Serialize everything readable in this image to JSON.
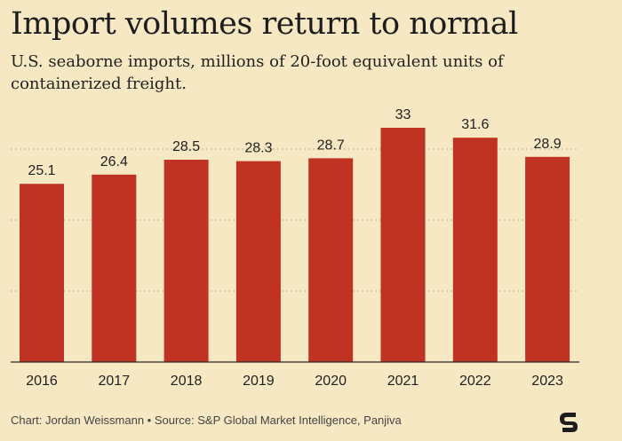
{
  "title": "Import volumes return to normal",
  "subtitle": "U.S. seaborne imports, millions of 20-foot equivalent units of containerized freight.",
  "footer": "Chart: Jordan Weissmann • Source: S&P Global Market Intelligence, Panjiva",
  "colors": {
    "bar": "#c03222",
    "background": "#f6e8c3",
    "grid": "#b8b09e"
  },
  "icons": {
    "logo": "semafor-s-logo"
  },
  "chart_data": {
    "type": "bar",
    "categories": [
      "2016",
      "2017",
      "2018",
      "2019",
      "2020",
      "2021",
      "2022",
      "2023"
    ],
    "values": [
      25.1,
      26.4,
      28.5,
      28.3,
      28.7,
      33,
      31.6,
      28.9
    ],
    "data_labels": [
      "25.1",
      "26.4",
      "28.5",
      "28.3",
      "28.7",
      "33",
      "31.6",
      "28.9"
    ],
    "ylim": [
      0,
      40
    ],
    "gridlines": [
      10,
      20,
      30
    ],
    "grid": true,
    "legend": "none"
  }
}
